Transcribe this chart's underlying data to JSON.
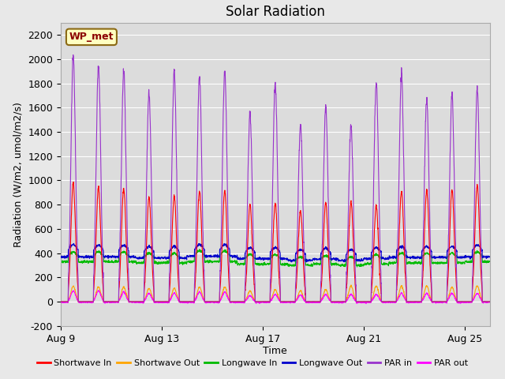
{
  "title": "Solar Radiation",
  "xlabel": "Time",
  "ylabel": "Radiation (W/m2, umol/m2/s)",
  "ylim": [
    -200,
    2300
  ],
  "yticks": [
    -200,
    0,
    200,
    400,
    600,
    800,
    1000,
    1200,
    1400,
    1600,
    1800,
    2000,
    2200
  ],
  "xtick_labels": [
    "Aug 9",
    "Aug 13",
    "Aug 17",
    "Aug 21",
    "Aug 25"
  ],
  "xtick_positions": [
    0,
    4,
    8,
    12,
    16
  ],
  "num_days": 17,
  "fig_bg_color": "#e8e8e8",
  "plot_bg_color": "#e8e8e8",
  "inner_plot_bg": "#dcdcdc",
  "grid_color": "#ffffff",
  "wp_met_label": "WP_met",
  "wp_met_bg": "#ffffc0",
  "wp_met_border": "#8b6914",
  "legend_entries": [
    "Shortwave In",
    "Shortwave Out",
    "Longwave In",
    "Longwave Out",
    "PAR in",
    "PAR out"
  ],
  "legend_colors": [
    "#ff0000",
    "#ffa500",
    "#00bb00",
    "#0000cc",
    "#9933cc",
    "#ff00ff"
  ],
  "shortwave_in_peaks": [
    980,
    940,
    930,
    860,
    870,
    910,
    915,
    800,
    810,
    750,
    820,
    820,
    790,
    910,
    920,
    920,
    960
  ],
  "shortwave_out_peaks": [
    130,
    120,
    120,
    110,
    110,
    120,
    120,
    90,
    100,
    90,
    100,
    130,
    130,
    130,
    130,
    120,
    130
  ],
  "longwave_in_peaks": [
    410,
    410,
    410,
    400,
    400,
    420,
    420,
    390,
    390,
    370,
    380,
    370,
    390,
    400,
    400,
    400,
    410
  ],
  "longwave_in_base": [
    330,
    330,
    330,
    320,
    320,
    330,
    330,
    310,
    310,
    300,
    310,
    300,
    310,
    320,
    320,
    320,
    330
  ],
  "longwave_out_peaks": [
    470,
    465,
    465,
    455,
    455,
    470,
    470,
    445,
    445,
    430,
    440,
    430,
    445,
    455,
    455,
    455,
    465
  ],
  "longwave_out_base": [
    370,
    370,
    370,
    360,
    360,
    375,
    375,
    355,
    355,
    340,
    350,
    340,
    355,
    365,
    365,
    365,
    370
  ],
  "par_in_peaks": [
    2020,
    1940,
    1900,
    1720,
    1890,
    1850,
    1900,
    1540,
    1800,
    1460,
    1600,
    1450,
    1810,
    1870,
    1660,
    1710,
    1750
  ],
  "par_out_peaks": [
    90,
    90,
    80,
    70,
    70,
    80,
    80,
    50,
    60,
    55,
    60,
    60,
    60,
    70,
    70,
    70,
    70
  ]
}
